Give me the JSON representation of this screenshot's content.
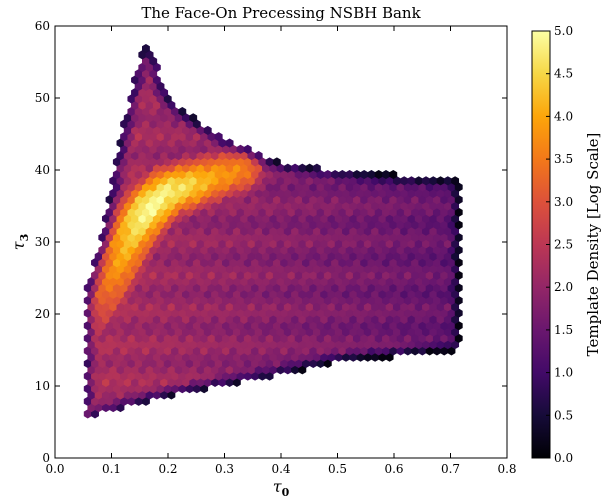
{
  "chart_data": {
    "type": "heatmap",
    "subtype": "hexbin",
    "title": "The Face-On Precessing NSBH Bank",
    "xlabel": "τ",
    "xlabel_sub": "0",
    "ylabel": "τ",
    "ylabel_sub": "3",
    "xlim": [
      0.0,
      0.8
    ],
    "ylim": [
      0,
      60
    ],
    "x_ticks": [
      "0.0",
      "0.1",
      "0.2",
      "0.3",
      "0.4",
      "0.5",
      "0.6",
      "0.7",
      "0.8"
    ],
    "y_ticks": [
      "0",
      "10",
      "20",
      "30",
      "40",
      "50",
      "60"
    ],
    "colorbar": {
      "label": "Template Density [Log Scale]",
      "range": [
        0.0,
        5.0
      ],
      "ticks": [
        "0.0",
        "0.5",
        "1.0",
        "1.5",
        "2.0",
        "2.5",
        "3.0",
        "3.5",
        "4.0",
        "4.5",
        "5.0"
      ],
      "colormap": "inferno"
    },
    "grid": false,
    "region_outline": [
      [
        0.052,
        5.5
      ],
      [
        0.052,
        23.0
      ],
      [
        0.08,
        30.0
      ],
      [
        0.11,
        42.0
      ],
      [
        0.14,
        53.0
      ],
      [
        0.16,
        57.5
      ],
      [
        0.18,
        55.0
      ],
      [
        0.2,
        50.0
      ],
      [
        0.25,
        47.0
      ],
      [
        0.3,
        44.5
      ],
      [
        0.4,
        41.0
      ],
      [
        0.5,
        40.0
      ],
      [
        0.6,
        39.4
      ],
      [
        0.72,
        39.0
      ],
      [
        0.72,
        15.0
      ],
      [
        0.6,
        14.0
      ],
      [
        0.5,
        13.2
      ],
      [
        0.4,
        11.5
      ],
      [
        0.3,
        10.2
      ],
      [
        0.2,
        8.5
      ],
      [
        0.1,
        6.5
      ],
      [
        0.052,
        5.5
      ]
    ],
    "density_peak": {
      "x": 0.17,
      "y": 34,
      "value": 5.0
    },
    "density_ridge": [
      [
        0.065,
        18,
        2.5
      ],
      [
        0.09,
        22,
        3.2
      ],
      [
        0.11,
        26,
        3.8
      ],
      [
        0.13,
        30,
        4.3
      ],
      [
        0.15,
        33,
        4.8
      ],
      [
        0.17,
        35,
        5.0
      ],
      [
        0.2,
        37,
        4.8
      ],
      [
        0.24,
        38,
        4.5
      ],
      [
        0.28,
        39,
        4.0
      ],
      [
        0.33,
        40,
        3.6
      ]
    ]
  }
}
